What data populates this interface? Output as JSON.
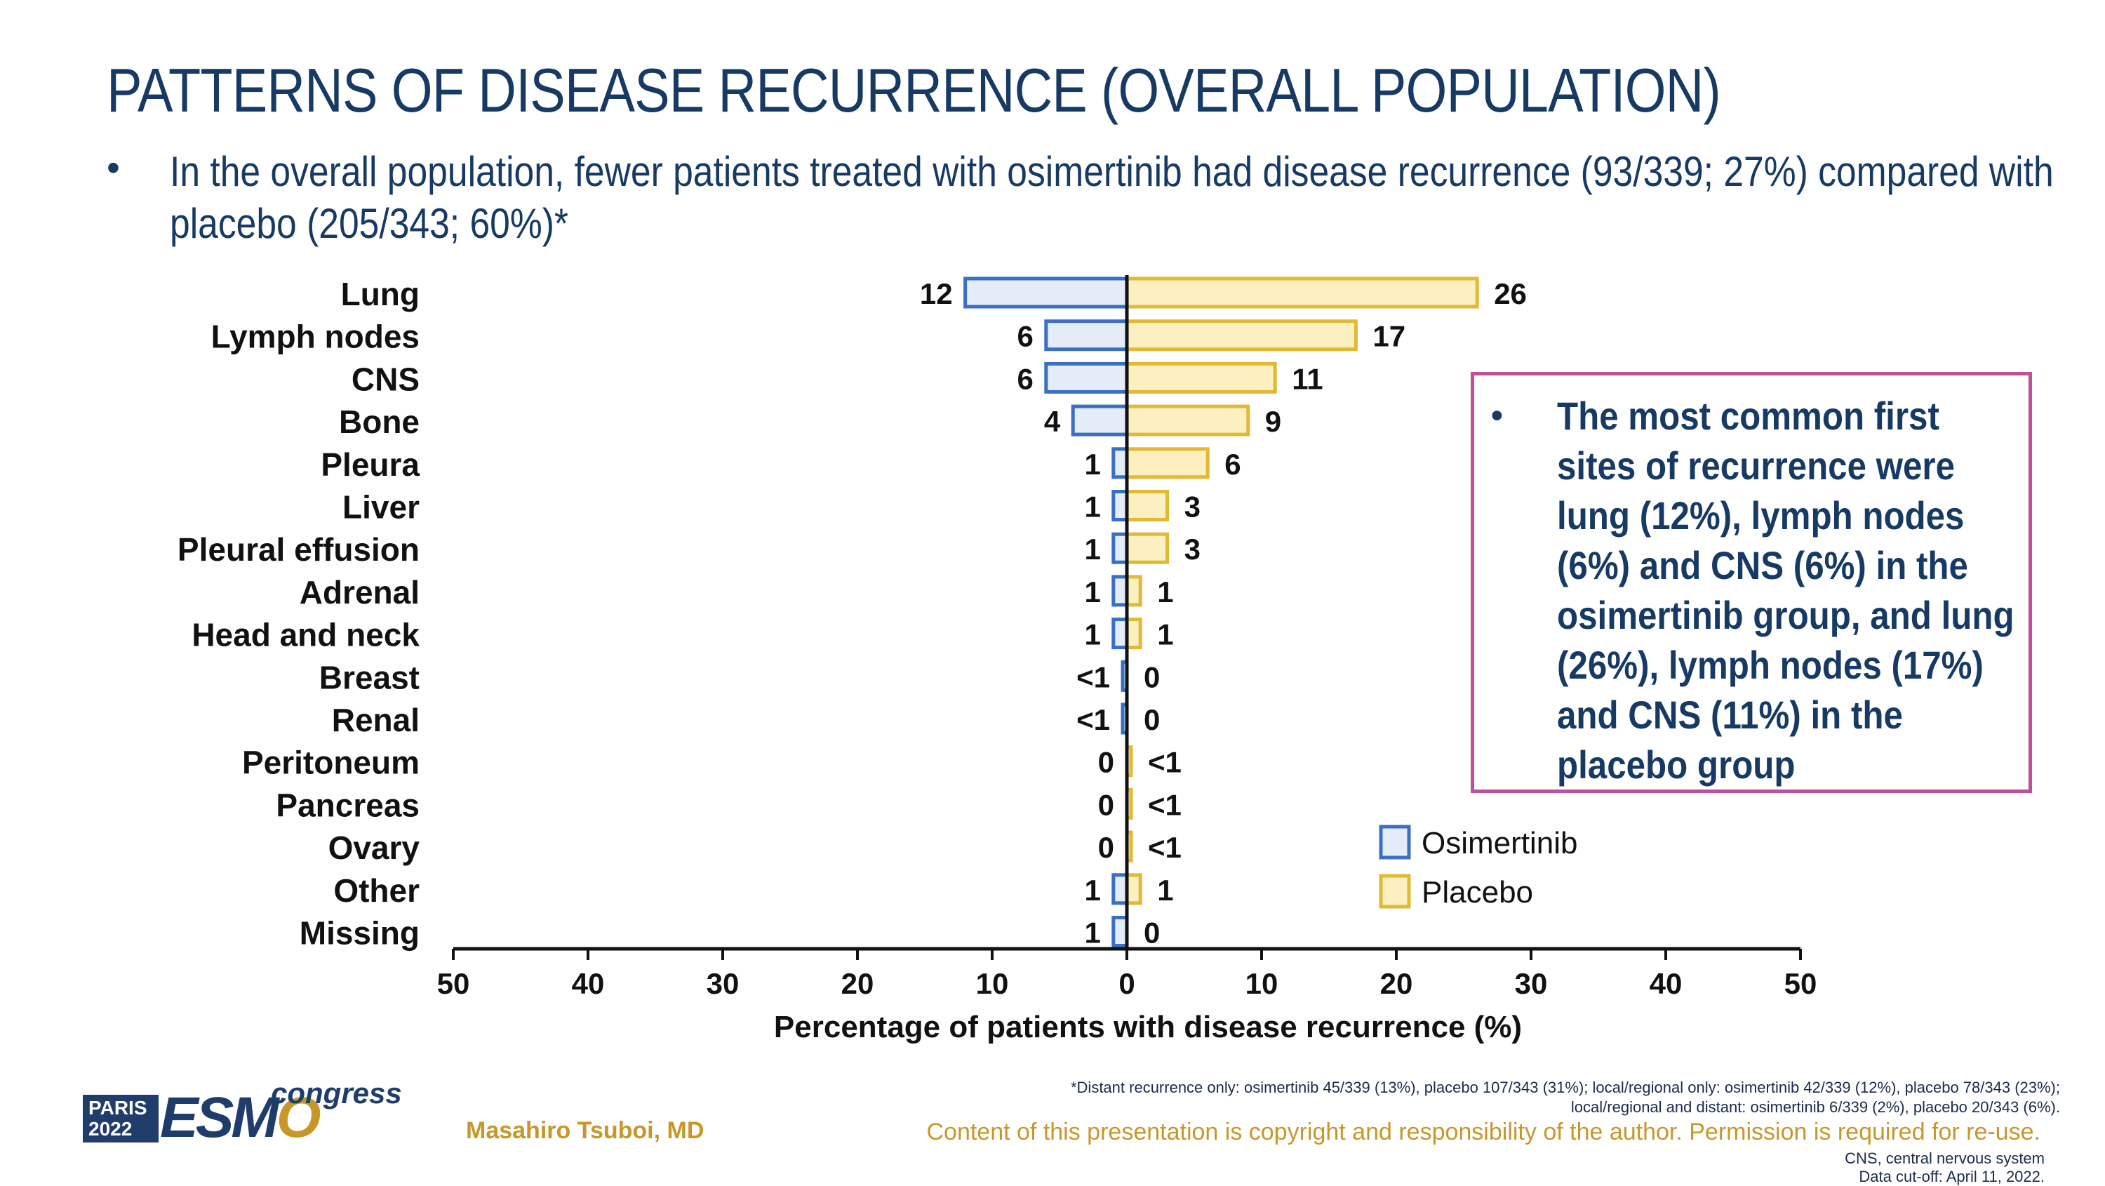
{
  "header": {
    "title": "PATTERNS OF DISEASE RECURRENCE (OVERALL POPULATION)",
    "bullet_symbol": "•",
    "bullet_text": "In the overall population, fewer patients treated with osimertinib had disease recurrence (93/339; 27%) compared with placebo (205/343; 60%)*"
  },
  "callout": {
    "bullet_symbol": "•",
    "text": "The most common first sites of recurrence were lung (12%), lymph nodes (6%) and CNS (6%) in the osimertinib group, and lung (26%), lymph nodes (17%) and CNS (11%) in the placebo group"
  },
  "colors": {
    "osimertinib_fill": "#e4ecf8",
    "osimertinib_stroke": "#3a6fc4",
    "placebo_fill": "#fcefc0",
    "placebo_stroke": "#e2b934",
    "title": "#173a65",
    "callout_border": "#c0509a",
    "gold": "#c8972a"
  },
  "chart_data": {
    "type": "bar",
    "orientation": "horizontal-butterfly",
    "categories": [
      "Lung",
      "Lymph nodes",
      "CNS",
      "Bone",
      "Pleura",
      "Liver",
      "Pleural effusion",
      "Adrenal",
      "Head and neck",
      "Breast",
      "Renal",
      "Peritoneum",
      "Pancreas",
      "Ovary",
      "Other",
      "Missing"
    ],
    "series": [
      {
        "name": "Osimertinib",
        "direction": "left",
        "values": [
          12,
          6,
          6,
          4,
          1,
          1,
          1,
          1,
          1,
          0.3,
          0.3,
          0,
          0,
          0,
          1,
          1
        ],
        "labels": [
          "12",
          "6",
          "6",
          "4",
          "1",
          "1",
          "1",
          "1",
          "1",
          "<1",
          "<1",
          "0",
          "0",
          "0",
          "1",
          "1"
        ]
      },
      {
        "name": "Placebo",
        "direction": "right",
        "values": [
          26,
          17,
          11,
          9,
          6,
          3,
          3,
          1,
          1,
          0,
          0,
          0.3,
          0.3,
          0.3,
          1,
          0
        ],
        "labels": [
          "26",
          "17",
          "11",
          "9",
          "6",
          "3",
          "3",
          "1",
          "1",
          "0",
          "0",
          "<1",
          "<1",
          "<1",
          "1",
          "0"
        ]
      }
    ],
    "x_range": [
      -50,
      50
    ],
    "x_ticks": [
      -50,
      -40,
      -30,
      -20,
      -10,
      0,
      10,
      20,
      30,
      40,
      50
    ],
    "x_tick_labels": [
      "50",
      "40",
      "30",
      "20",
      "10",
      "0",
      "10",
      "20",
      "30",
      "40",
      "50"
    ],
    "xlabel": "Percentage of patients with disease recurrence (%)",
    "legend": [
      {
        "name": "Osimertinib"
      },
      {
        "name": "Placebo"
      }
    ],
    "legend_position": "lower-right",
    "grid": false
  },
  "footer": {
    "logo_city": "PARIS",
    "logo_year": "2022",
    "logo_brand_1": "ESM",
    "logo_brand_2": "O",
    "logo_congress": "congress",
    "presenter": "Masahiro Tsuboi, MD",
    "footnote_line1": "*Distant recurrence only: osimertinib 45/339 (13%), placebo 107/343 (31%); local/regional only: osimertinib 42/339 (12%), placebo 78/343 (23%);",
    "footnote_line2": "local/regional and distant: osimertinib 6/339 (2%), placebo 20/343 (6%).",
    "copyright": "Content of this presentation is copyright and responsibility of the author. Permission is required for re-use.",
    "abbrev": "CNS, central nervous system",
    "cutoff": "Data cut-off: April 11, 2022."
  }
}
